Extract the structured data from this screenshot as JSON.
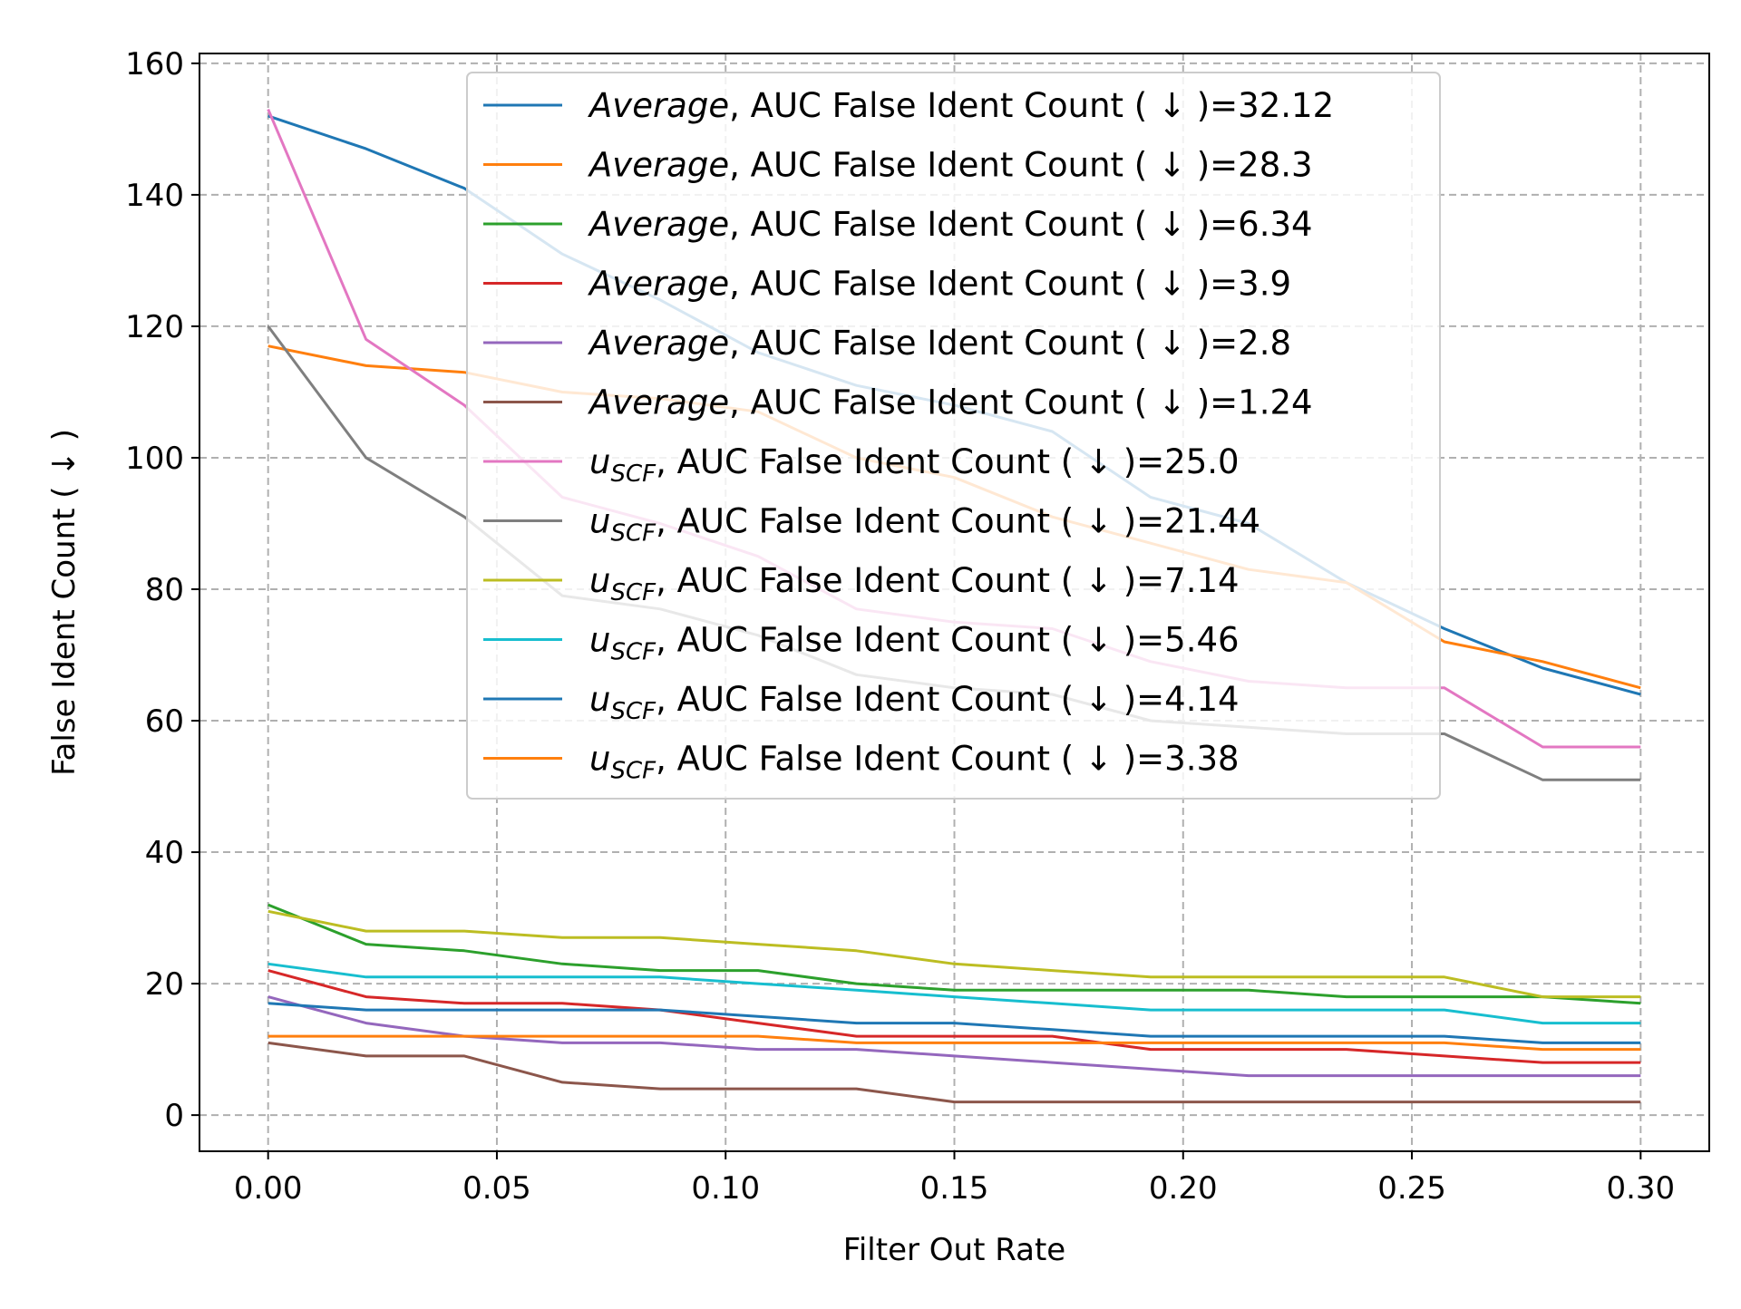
{
  "chart_data": {
    "type": "line",
    "title": "",
    "xlabel": "Filter Out Rate",
    "ylabel": "False Ident Count ( ↓ )",
    "xlim": [
      -0.015,
      0.315
    ],
    "ylim": [
      -5.5,
      161.5
    ],
    "x_ticks": [
      "0.00",
      "0.05",
      "0.10",
      "0.15",
      "0.20",
      "0.25",
      "0.30"
    ],
    "y_ticks": [
      "0",
      "20",
      "40",
      "60",
      "80",
      "100",
      "120",
      "140",
      "160"
    ],
    "grid": true,
    "legend_position": "upper-center",
    "x": [
      0.0,
      0.0214,
      0.0429,
      0.0643,
      0.0857,
      0.1071,
      0.1286,
      0.15,
      0.1714,
      0.1929,
      0.2143,
      0.2357,
      0.2571,
      0.2786,
      0.3
    ],
    "series": [
      {
        "name_prefix": "Average",
        "name_rest": ", AUC False Ident Count ( ↓ )=32.12",
        "color": "#1f77b4",
        "values": [
          152,
          147,
          141,
          131,
          124,
          116,
          111,
          108,
          104,
          94,
          90,
          81,
          74,
          68,
          64
        ]
      },
      {
        "name_prefix": "Average",
        "name_rest": ", AUC False Ident Count ( ↓ )=28.3",
        "color": "#ff7f0e",
        "values": [
          117,
          114,
          113,
          110,
          109,
          107,
          100,
          97,
          91,
          87,
          83,
          81,
          72,
          69,
          65
        ]
      },
      {
        "name_prefix": "Average",
        "name_rest": ", AUC False Ident Count ( ↓ )=6.34",
        "color": "#2ca02c",
        "values": [
          32,
          26,
          25,
          23,
          22,
          22,
          20,
          19,
          19,
          19,
          19,
          18,
          18,
          18,
          17
        ]
      },
      {
        "name_prefix": "Average",
        "name_rest": ", AUC False Ident Count ( ↓ )=3.9",
        "color": "#d62728",
        "values": [
          22,
          18,
          17,
          17,
          16,
          14,
          12,
          12,
          12,
          10,
          10,
          10,
          9,
          8,
          8
        ]
      },
      {
        "name_prefix": "Average",
        "name_rest": ", AUC False Ident Count ( ↓ )=2.8",
        "color": "#9467bd",
        "values": [
          18,
          14,
          12,
          11,
          11,
          10,
          10,
          9,
          8,
          7,
          6,
          6,
          6,
          6,
          6
        ]
      },
      {
        "name_prefix": "Average",
        "name_rest": ", AUC False Ident Count ( ↓ )=1.24",
        "color": "#8c564b",
        "values": [
          11,
          9,
          9,
          5,
          4,
          4,
          4,
          2,
          2,
          2,
          2,
          2,
          2,
          2,
          2
        ]
      },
      {
        "name_prefix": "u",
        "name_sub": "SCF",
        "name_rest": ", AUC False Ident Count ( ↓ )=25.0",
        "color": "#e377c2",
        "values": [
          153,
          118,
          108,
          94,
          90,
          85,
          77,
          75,
          74,
          69,
          66,
          65,
          65,
          56,
          56
        ]
      },
      {
        "name_prefix": "u",
        "name_sub": "SCF",
        "name_rest": ", AUC False Ident Count ( ↓ )=21.44",
        "color": "#7f7f7f",
        "values": [
          120,
          100,
          91,
          79,
          77,
          73,
          67,
          65,
          64,
          60,
          59,
          58,
          58,
          51,
          51
        ]
      },
      {
        "name_prefix": "u",
        "name_sub": "SCF",
        "name_rest": ", AUC False Ident Count ( ↓ )=7.14",
        "color": "#bcbd22",
        "values": [
          31,
          28,
          28,
          27,
          27,
          26,
          25,
          23,
          22,
          21,
          21,
          21,
          21,
          18,
          18
        ]
      },
      {
        "name_prefix": "u",
        "name_sub": "SCF",
        "name_rest": ", AUC False Ident Count ( ↓ )=5.46",
        "color": "#17becf",
        "values": [
          23,
          21,
          21,
          21,
          21,
          20,
          19,
          18,
          17,
          16,
          16,
          16,
          16,
          14,
          14
        ]
      },
      {
        "name_prefix": "u",
        "name_sub": "SCF",
        "name_rest": ", AUC False Ident Count ( ↓ )=4.14",
        "color": "#1f77b4",
        "values": [
          17,
          16,
          16,
          16,
          16,
          15,
          14,
          14,
          13,
          12,
          12,
          12,
          12,
          11,
          11
        ]
      },
      {
        "name_prefix": "u",
        "name_sub": "SCF",
        "name_rest": ", AUC False Ident Count ( ↓ )=3.38",
        "color": "#ff7f0e",
        "values": [
          12,
          12,
          12,
          12,
          12,
          12,
          11,
          11,
          11,
          11,
          11,
          11,
          11,
          10,
          10
        ]
      }
    ]
  }
}
